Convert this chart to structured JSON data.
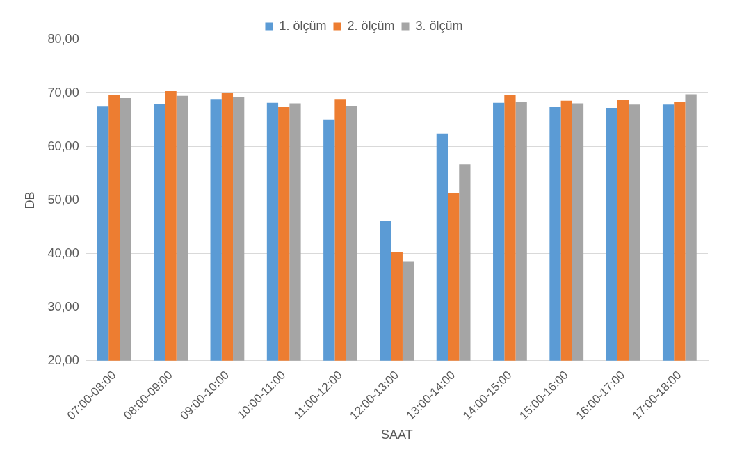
{
  "chart_data": {
    "type": "bar",
    "xlabel": "SAAT",
    "ylabel": "DB",
    "categories": [
      "07:00-08:00",
      "08:00-09:00",
      "09:00-10:00",
      "10:00-11:00",
      "11:00-12:00",
      "12:00-13:00",
      "13:00-14:00",
      "14:00-15:00",
      "15:00-16:00",
      "16:00-17:00",
      "17:00-18:00"
    ],
    "series": [
      {
        "name": "1. ölçüm",
        "color": "#5b9bd5",
        "values": [
          67.5,
          68.0,
          68.8,
          68.2,
          65.1,
          46.1,
          62.5,
          68.2,
          67.4,
          67.2,
          67.9
        ]
      },
      {
        "name": "2. ölçüm",
        "color": "#ed7d31",
        "values": [
          69.6,
          70.4,
          70.0,
          67.4,
          68.8,
          40.3,
          51.4,
          69.7,
          68.6,
          68.7,
          68.4
        ]
      },
      {
        "name": "3. ölçüm",
        "color": "#a5a5a5",
        "values": [
          69.1,
          69.5,
          69.3,
          68.1,
          67.6,
          38.5,
          56.7,
          68.3,
          68.1,
          67.9,
          69.8
        ]
      }
    ],
    "ylim": [
      20,
      80
    ],
    "yticks": [
      {
        "value": 20,
        "label": "20,00"
      },
      {
        "value": 30,
        "label": "30,00"
      },
      {
        "value": 40,
        "label": "40,00"
      },
      {
        "value": 50,
        "label": "50,00"
      },
      {
        "value": 60,
        "label": "60,00"
      },
      {
        "value": 70,
        "label": "70,00"
      },
      {
        "value": 80,
        "label": "80,00"
      }
    ],
    "grid": "y",
    "legend": "top"
  }
}
